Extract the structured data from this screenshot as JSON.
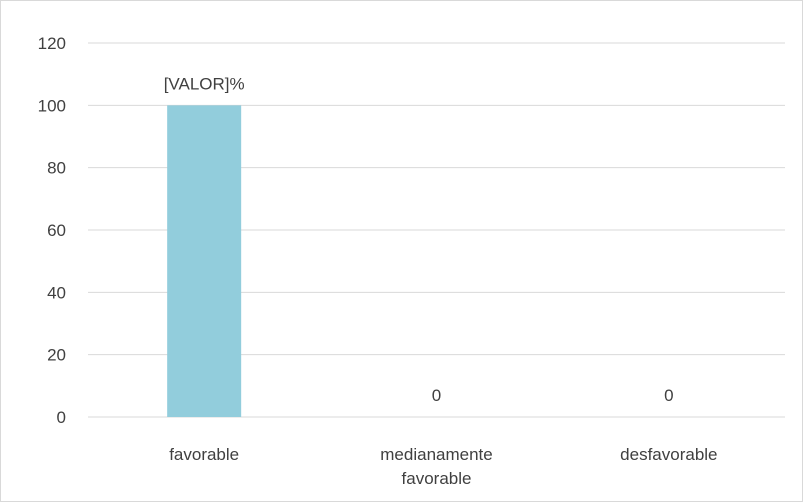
{
  "chart_data": {
    "type": "bar",
    "categories": [
      [
        "favorable"
      ],
      [
        "medianamente",
        "favorable"
      ],
      [
        "desfavorable"
      ]
    ],
    "values": [
      100,
      0,
      0
    ],
    "data_labels": [
      "[VALOR]%",
      "0",
      "0"
    ],
    "title": "",
    "xlabel": "",
    "ylabel": "",
    "ylim": [
      0,
      120
    ],
    "yticks": [
      0,
      20,
      40,
      60,
      80,
      100,
      120
    ],
    "grid": true,
    "legend": "none",
    "bar_color": "#92CDDC",
    "grid_color": "#d9d9d9",
    "text_color": "#404040"
  }
}
